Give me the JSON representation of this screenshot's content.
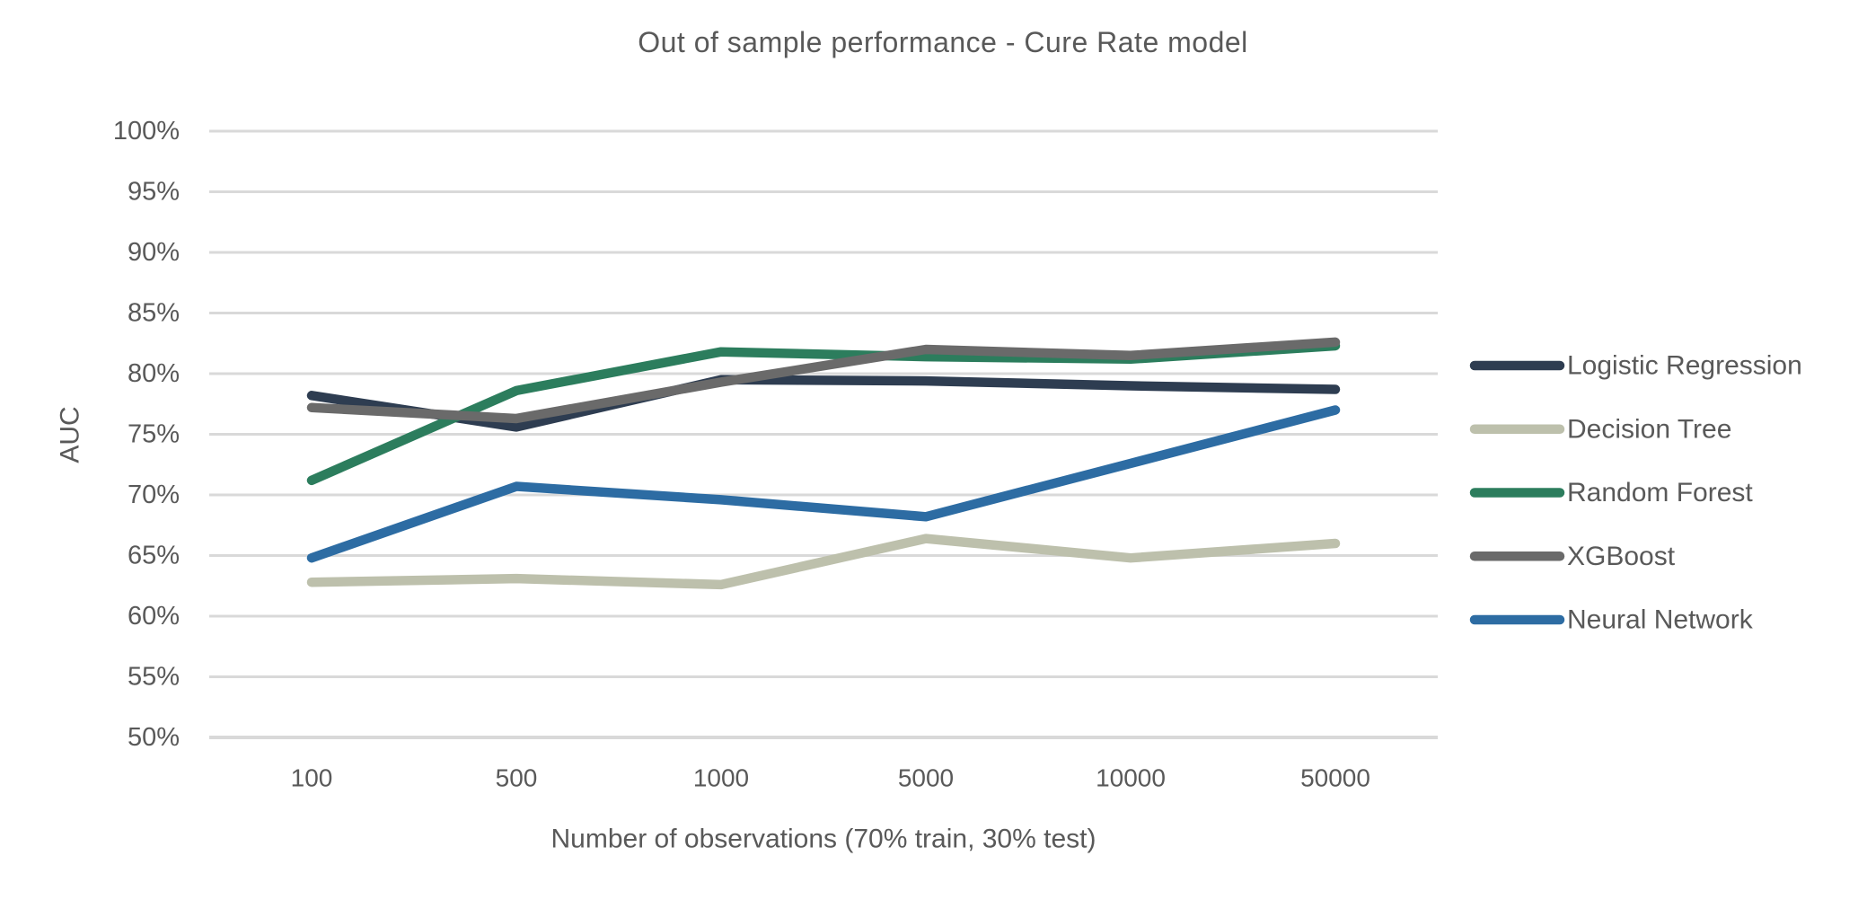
{
  "chart_data": {
    "type": "line",
    "title": "Out of sample performance - Cure Rate model",
    "xlabel": "Number of observations (70% train, 30% test)",
    "ylabel": "AUC",
    "categories": [
      "100",
      "500",
      "1000",
      "5000",
      "10000",
      "50000"
    ],
    "y_ticks": [
      {
        "label": "100%",
        "value": 100
      },
      {
        "label": "95%",
        "value": 95
      },
      {
        "label": "90%",
        "value": 90
      },
      {
        "label": "85%",
        "value": 85
      },
      {
        "label": "80%",
        "value": 80
      },
      {
        "label": "75%",
        "value": 75
      },
      {
        "label": "70%",
        "value": 70
      },
      {
        "label": "65%",
        "value": 65
      },
      {
        "label": "60%",
        "value": 60
      },
      {
        "label": "55%",
        "value": 55
      },
      {
        "label": "50%",
        "value": 50
      }
    ],
    "ylim": [
      50,
      100
    ],
    "grid": true,
    "legend_position": "right",
    "series": [
      {
        "name": "Logistic Regression",
        "color": "#2e3d51",
        "values": [
          78.2,
          75.6,
          79.5,
          79.4,
          79.0,
          78.7
        ]
      },
      {
        "name": "Decision Tree",
        "color": "#bdc0ac",
        "values": [
          62.8,
          63.1,
          62.6,
          66.4,
          64.8,
          66.0
        ]
      },
      {
        "name": "Random Forest",
        "color": "#2c7d5d",
        "values": [
          71.2,
          78.6,
          81.8,
          81.4,
          81.2,
          82.3
        ]
      },
      {
        "name": "XGBoost",
        "color": "#6a6a6a",
        "values": [
          77.2,
          76.3,
          79.3,
          82.0,
          81.5,
          82.6
        ]
      },
      {
        "name": "Neural Network",
        "color": "#2d6ca3",
        "values": [
          64.8,
          70.7,
          69.6,
          68.2,
          72.6,
          77.0
        ]
      }
    ],
    "colors": {
      "gridline": "#d9d9d9",
      "text": "#595959"
    }
  }
}
